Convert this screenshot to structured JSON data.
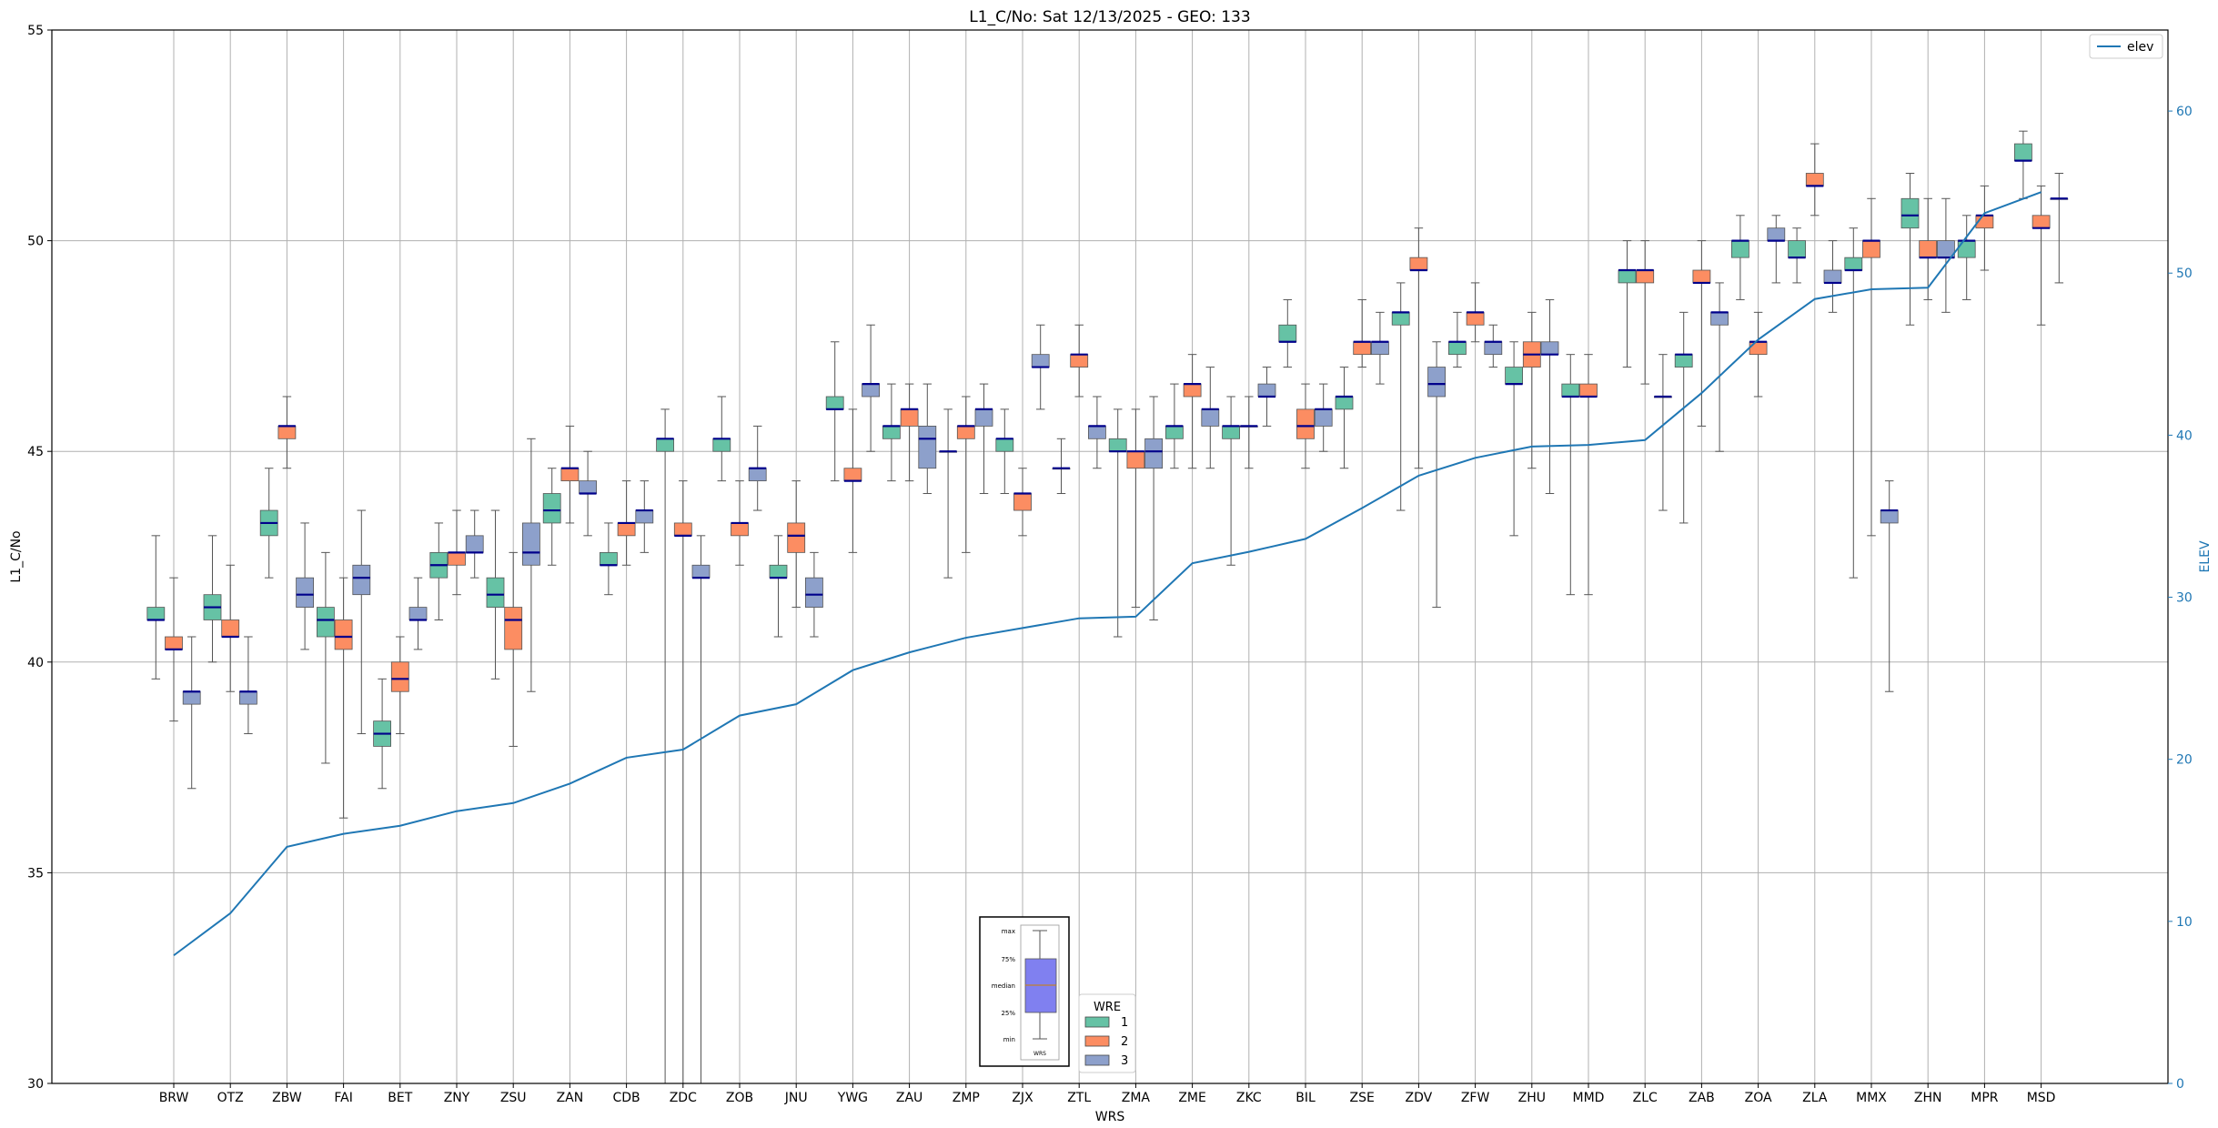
{
  "chart_data": {
    "type": "boxplot",
    "title": "L1_C/No: Sat 12/13/2025 - GEO: 133",
    "xlabel": "WRS",
    "ylabel": "L1_C/No",
    "y2label": "ELEV",
    "ylim": [
      30,
      55
    ],
    "y2lim": [
      0,
      65
    ],
    "yticks": [
      30,
      35,
      40,
      45,
      50,
      55
    ],
    "y2ticks": [
      0,
      10,
      20,
      30,
      40,
      50,
      60
    ],
    "grid": true,
    "colors": {
      "1": "#66c2a5",
      "2": "#fc8d62",
      "3": "#8da0cb",
      "median": "#00008b",
      "elev": "#1f77b4",
      "whisker": "#555555"
    },
    "legend_elev": {
      "label": "elev",
      "position": "top-right"
    },
    "legend_wre": {
      "title": "WRE",
      "entries": [
        "1",
        "2",
        "3"
      ],
      "position": "bottom-center"
    },
    "inset_key": {
      "labels": [
        "max",
        "75%",
        "median",
        "25%",
        "min"
      ],
      "xlabel": "WRS"
    },
    "categories": [
      "BRW",
      "OTZ",
      "ZBW",
      "FAI",
      "BET",
      "ZNY",
      "ZSU",
      "ZAN",
      "CDB",
      "ZDC",
      "ZOB",
      "JNU",
      "YWG",
      "ZAU",
      "ZMP",
      "ZJX",
      "ZTL",
      "ZMA",
      "ZME",
      "ZKC",
      "BIL",
      "ZSE",
      "ZDV",
      "ZFW",
      "ZHU",
      "MMD",
      "ZLC",
      "ZAB",
      "ZOA",
      "ZLA",
      "MMX",
      "ZHN",
      "MPR",
      "MSD"
    ],
    "elev": [
      7.9,
      10.5,
      14.6,
      15.4,
      15.9,
      16.8,
      17.3,
      18.5,
      20.1,
      20.6,
      22.7,
      23.4,
      25.5,
      26.6,
      27.5,
      28.1,
      28.7,
      28.8,
      32.1,
      32.8,
      33.6,
      35.5,
      37.5,
      38.6,
      39.3,
      39.4,
      39.7,
      42.6,
      45.9,
      48.4,
      49.0,
      49.1,
      53.7,
      55.0
    ],
    "boxes": [
      {
        "cat": "BRW",
        "wre": 1,
        "min": 39.6,
        "q1": 41.0,
        "med": 41.0,
        "q3": 41.3,
        "max": 43.0
      },
      {
        "cat": "BRW",
        "wre": 2,
        "min": 38.6,
        "q1": 40.3,
        "med": 40.3,
        "q3": 40.6,
        "max": 42.0
      },
      {
        "cat": "BRW",
        "wre": 3,
        "min": 37.0,
        "q1": 39.0,
        "med": 39.3,
        "q3": 39.3,
        "max": 40.6
      },
      {
        "cat": "OTZ",
        "wre": 1,
        "min": 40.0,
        "q1": 41.0,
        "med": 41.3,
        "q3": 41.6,
        "max": 43.0
      },
      {
        "cat": "OTZ",
        "wre": 2,
        "min": 39.3,
        "q1": 40.6,
        "med": 40.6,
        "q3": 41.0,
        "max": 42.3
      },
      {
        "cat": "OTZ",
        "wre": 3,
        "min": 38.3,
        "q1": 39.0,
        "med": 39.3,
        "q3": 39.3,
        "max": 40.6
      },
      {
        "cat": "ZBW",
        "wre": 1,
        "min": 42.0,
        "q1": 43.0,
        "med": 43.3,
        "q3": 43.6,
        "max": 44.6
      },
      {
        "cat": "ZBW",
        "wre": 2,
        "min": 44.6,
        "q1": 45.3,
        "med": 45.6,
        "q3": 45.6,
        "max": 46.3
      },
      {
        "cat": "ZBW",
        "wre": 3,
        "min": 40.3,
        "q1": 41.3,
        "med": 41.6,
        "q3": 42.0,
        "max": 43.3
      },
      {
        "cat": "FAI",
        "wre": 1,
        "min": 37.6,
        "q1": 40.6,
        "med": 41.0,
        "q3": 41.3,
        "max": 42.6
      },
      {
        "cat": "FAI",
        "wre": 2,
        "min": 36.3,
        "q1": 40.3,
        "med": 40.6,
        "q3": 41.0,
        "max": 42.0
      },
      {
        "cat": "FAI",
        "wre": 3,
        "min": 38.3,
        "q1": 41.6,
        "med": 42.0,
        "q3": 42.3,
        "max": 43.6
      },
      {
        "cat": "BET",
        "wre": 1,
        "min": 37.0,
        "q1": 38.0,
        "med": 38.3,
        "q3": 38.6,
        "max": 39.6
      },
      {
        "cat": "BET",
        "wre": 2,
        "min": 38.3,
        "q1": 39.3,
        "med": 39.6,
        "q3": 40.0,
        "max": 40.6
      },
      {
        "cat": "BET",
        "wre": 3,
        "min": 40.3,
        "q1": 41.0,
        "med": 41.0,
        "q3": 41.3,
        "max": 42.0
      },
      {
        "cat": "ZNY",
        "wre": 1,
        "min": 41.0,
        "q1": 42.0,
        "med": 42.3,
        "q3": 42.6,
        "max": 43.3
      },
      {
        "cat": "ZNY",
        "wre": 2,
        "min": 41.6,
        "q1": 42.3,
        "med": 42.6,
        "q3": 42.6,
        "max": 43.6
      },
      {
        "cat": "ZNY",
        "wre": 3,
        "min": 42.0,
        "q1": 42.6,
        "med": 42.6,
        "q3": 43.0,
        "max": 43.6
      },
      {
        "cat": "ZSU",
        "wre": 1,
        "min": 39.6,
        "q1": 41.3,
        "med": 41.6,
        "q3": 42.0,
        "max": 43.6
      },
      {
        "cat": "ZSU",
        "wre": 2,
        "min": 38.0,
        "q1": 40.3,
        "med": 41.0,
        "q3": 41.3,
        "max": 42.6
      },
      {
        "cat": "ZSU",
        "wre": 3,
        "min": 39.3,
        "q1": 42.3,
        "med": 42.6,
        "q3": 43.3,
        "max": 45.3
      },
      {
        "cat": "ZAN",
        "wre": 1,
        "min": 42.3,
        "q1": 43.3,
        "med": 43.6,
        "q3": 44.0,
        "max": 44.6
      },
      {
        "cat": "ZAN",
        "wre": 2,
        "min": 43.3,
        "q1": 44.3,
        "med": 44.6,
        "q3": 44.6,
        "max": 45.6
      },
      {
        "cat": "ZAN",
        "wre": 3,
        "min": 43.0,
        "q1": 44.0,
        "med": 44.0,
        "q3": 44.3,
        "max": 45.0
      },
      {
        "cat": "CDB",
        "wre": 1,
        "min": 41.6,
        "q1": 42.3,
        "med": 42.3,
        "q3": 42.6,
        "max": 43.3
      },
      {
        "cat": "CDB",
        "wre": 2,
        "min": 42.3,
        "q1": 43.0,
        "med": 43.3,
        "q3": 43.3,
        "max": 44.3
      },
      {
        "cat": "CDB",
        "wre": 3,
        "min": 42.6,
        "q1": 43.3,
        "med": 43.6,
        "q3": 43.6,
        "max": 44.3
      },
      {
        "cat": "ZDC",
        "wre": 1,
        "min": 30.0,
        "q1": 45.0,
        "med": 45.3,
        "q3": 45.3,
        "max": 46.0
      },
      {
        "cat": "ZDC",
        "wre": 2,
        "min": 30.0,
        "q1": 43.0,
        "med": 43.0,
        "q3": 43.3,
        "max": 44.3
      },
      {
        "cat": "ZDC",
        "wre": 3,
        "min": 30.0,
        "q1": 42.0,
        "med": 42.0,
        "q3": 42.3,
        "max": 43.0
      },
      {
        "cat": "ZOB",
        "wre": 1,
        "min": 44.3,
        "q1": 45.0,
        "med": 45.3,
        "q3": 45.3,
        "max": 46.3
      },
      {
        "cat": "ZOB",
        "wre": 2,
        "min": 42.3,
        "q1": 43.0,
        "med": 43.3,
        "q3": 43.3,
        "max": 44.3
      },
      {
        "cat": "ZOB",
        "wre": 3,
        "min": 43.6,
        "q1": 44.3,
        "med": 44.6,
        "q3": 44.6,
        "max": 45.6
      },
      {
        "cat": "JNU",
        "wre": 1,
        "min": 40.6,
        "q1": 42.0,
        "med": 42.0,
        "q3": 42.3,
        "max": 43.0
      },
      {
        "cat": "JNU",
        "wre": 2,
        "min": 41.3,
        "q1": 42.6,
        "med": 43.0,
        "q3": 43.3,
        "max": 44.3
      },
      {
        "cat": "JNU",
        "wre": 3,
        "min": 40.6,
        "q1": 41.3,
        "med": 41.6,
        "q3": 42.0,
        "max": 42.6
      },
      {
        "cat": "YWG",
        "wre": 1,
        "min": 44.3,
        "q1": 46.0,
        "med": 46.0,
        "q3": 46.3,
        "max": 47.6
      },
      {
        "cat": "YWG",
        "wre": 2,
        "min": 42.6,
        "q1": 44.3,
        "med": 44.3,
        "q3": 44.6,
        "max": 46.0
      },
      {
        "cat": "YWG",
        "wre": 3,
        "min": 45.0,
        "q1": 46.3,
        "med": 46.6,
        "q3": 46.6,
        "max": 48.0
      },
      {
        "cat": "ZAU",
        "wre": 1,
        "min": 44.3,
        "q1": 45.3,
        "med": 45.6,
        "q3": 45.6,
        "max": 46.6
      },
      {
        "cat": "ZAU",
        "wre": 2,
        "min": 44.3,
        "q1": 45.6,
        "med": 46.0,
        "q3": 46.0,
        "max": 46.6
      },
      {
        "cat": "ZAU",
        "wre": 3,
        "min": 44.0,
        "q1": 44.6,
        "med": 45.3,
        "q3": 45.6,
        "max": 46.6
      },
      {
        "cat": "ZMP",
        "wre": 1,
        "min": 42.0,
        "q1": 45.0,
        "med": 45.0,
        "q3": 45.0,
        "max": 46.0
      },
      {
        "cat": "ZMP",
        "wre": 2,
        "min": 42.6,
        "q1": 45.3,
        "med": 45.6,
        "q3": 45.6,
        "max": 46.3
      },
      {
        "cat": "ZMP",
        "wre": 3,
        "min": 44.0,
        "q1": 45.6,
        "med": 46.0,
        "q3": 46.0,
        "max": 46.6
      },
      {
        "cat": "ZJX",
        "wre": 1,
        "min": 44.0,
        "q1": 45.0,
        "med": 45.3,
        "q3": 45.3,
        "max": 46.0
      },
      {
        "cat": "ZJX",
        "wre": 2,
        "min": 43.0,
        "q1": 43.6,
        "med": 44.0,
        "q3": 44.0,
        "max": 44.6
      },
      {
        "cat": "ZJX",
        "wre": 3,
        "min": 46.0,
        "q1": 47.0,
        "med": 47.0,
        "q3": 47.3,
        "max": 48.0
      },
      {
        "cat": "ZTL",
        "wre": 1,
        "min": 44.0,
        "q1": 44.6,
        "med": 44.6,
        "q3": 44.6,
        "max": 45.3
      },
      {
        "cat": "ZTL",
        "wre": 2,
        "min": 46.3,
        "q1": 47.0,
        "med": 47.3,
        "q3": 47.3,
        "max": 48.0
      },
      {
        "cat": "ZTL",
        "wre": 3,
        "min": 44.6,
        "q1": 45.3,
        "med": 45.6,
        "q3": 45.6,
        "max": 46.3
      },
      {
        "cat": "ZMA",
        "wre": 1,
        "min": 40.6,
        "q1": 45.0,
        "med": 45.0,
        "q3": 45.3,
        "max": 46.0
      },
      {
        "cat": "ZMA",
        "wre": 2,
        "min": 41.3,
        "q1": 44.6,
        "med": 45.0,
        "q3": 45.0,
        "max": 46.0
      },
      {
        "cat": "ZMA",
        "wre": 3,
        "min": 41.0,
        "q1": 44.6,
        "med": 45.0,
        "q3": 45.3,
        "max": 46.3
      },
      {
        "cat": "ZME",
        "wre": 1,
        "min": 44.6,
        "q1": 45.3,
        "med": 45.6,
        "q3": 45.6,
        "max": 46.6
      },
      {
        "cat": "ZME",
        "wre": 2,
        "min": 44.6,
        "q1": 46.3,
        "med": 46.6,
        "q3": 46.6,
        "max": 47.3
      },
      {
        "cat": "ZME",
        "wre": 3,
        "min": 44.6,
        "q1": 45.6,
        "med": 46.0,
        "q3": 46.0,
        "max": 47.0
      },
      {
        "cat": "ZKC",
        "wre": 1,
        "min": 42.3,
        "q1": 45.3,
        "med": 45.6,
        "q3": 45.6,
        "max": 46.3
      },
      {
        "cat": "ZKC",
        "wre": 2,
        "min": 44.6,
        "q1": 45.6,
        "med": 45.6,
        "q3": 45.6,
        "max": 46.3
      },
      {
        "cat": "ZKC",
        "wre": 3,
        "min": 45.6,
        "q1": 46.3,
        "med": 46.3,
        "q3": 46.6,
        "max": 47.0
      },
      {
        "cat": "BIL",
        "wre": 1,
        "min": 47.0,
        "q1": 47.6,
        "med": 47.6,
        "q3": 48.0,
        "max": 48.6
      },
      {
        "cat": "BIL",
        "wre": 2,
        "min": 44.6,
        "q1": 45.3,
        "med": 45.6,
        "q3": 46.0,
        "max": 46.6
      },
      {
        "cat": "BIL",
        "wre": 3,
        "min": 45.0,
        "q1": 45.6,
        "med": 46.0,
        "q3": 46.0,
        "max": 46.6
      },
      {
        "cat": "ZSE",
        "wre": 1,
        "min": 44.6,
        "q1": 46.0,
        "med": 46.3,
        "q3": 46.3,
        "max": 47.0
      },
      {
        "cat": "ZSE",
        "wre": 2,
        "min": 47.0,
        "q1": 47.3,
        "med": 47.6,
        "q3": 47.6,
        "max": 48.6
      },
      {
        "cat": "ZSE",
        "wre": 3,
        "min": 46.6,
        "q1": 47.3,
        "med": 47.6,
        "q3": 47.6,
        "max": 48.3
      },
      {
        "cat": "ZDV",
        "wre": 1,
        "min": 43.6,
        "q1": 48.0,
        "med": 48.3,
        "q3": 48.3,
        "max": 49.0
      },
      {
        "cat": "ZDV",
        "wre": 2,
        "min": 44.6,
        "q1": 49.3,
        "med": 49.3,
        "q3": 49.6,
        "max": 50.3
      },
      {
        "cat": "ZDV",
        "wre": 3,
        "min": 41.3,
        "q1": 46.3,
        "med": 46.6,
        "q3": 47.0,
        "max": 47.6
      },
      {
        "cat": "ZFW",
        "wre": 1,
        "min": 47.0,
        "q1": 47.3,
        "med": 47.6,
        "q3": 47.6,
        "max": 48.3
      },
      {
        "cat": "ZFW",
        "wre": 2,
        "min": 47.6,
        "q1": 48.0,
        "med": 48.3,
        "q3": 48.3,
        "max": 49.0
      },
      {
        "cat": "ZFW",
        "wre": 3,
        "min": 47.0,
        "q1": 47.3,
        "med": 47.6,
        "q3": 47.6,
        "max": 48.0
      },
      {
        "cat": "ZHU",
        "wre": 1,
        "min": 43.0,
        "q1": 46.6,
        "med": 46.6,
        "q3": 47.0,
        "max": 47.6
      },
      {
        "cat": "ZHU",
        "wre": 2,
        "min": 44.6,
        "q1": 47.0,
        "med": 47.3,
        "q3": 47.6,
        "max": 48.3
      },
      {
        "cat": "ZHU",
        "wre": 3,
        "min": 44.0,
        "q1": 47.3,
        "med": 47.3,
        "q3": 47.6,
        "max": 48.6
      },
      {
        "cat": "MMD",
        "wre": 1,
        "min": 41.6,
        "q1": 46.3,
        "med": 46.3,
        "q3": 46.6,
        "max": 47.3
      },
      {
        "cat": "MMD",
        "wre": 2,
        "min": 41.6,
        "q1": 46.3,
        "med": 46.3,
        "q3": 46.6,
        "max": 47.3
      },
      {
        "cat": "ZLC",
        "wre": 1,
        "min": 47.0,
        "q1": 49.0,
        "med": 49.3,
        "q3": 49.3,
        "max": 50.0
      },
      {
        "cat": "ZLC",
        "wre": 2,
        "min": 46.6,
        "q1": 49.0,
        "med": 49.3,
        "q3": 49.3,
        "max": 50.0
      },
      {
        "cat": "ZLC",
        "wre": 3,
        "min": 43.6,
        "q1": 46.3,
        "med": 46.3,
        "q3": 46.3,
        "max": 47.3
      },
      {
        "cat": "ZAB",
        "wre": 1,
        "min": 43.3,
        "q1": 47.0,
        "med": 47.3,
        "q3": 47.3,
        "max": 48.3
      },
      {
        "cat": "ZAB",
        "wre": 2,
        "min": 45.6,
        "q1": 49.0,
        "med": 49.0,
        "q3": 49.3,
        "max": 50.0
      },
      {
        "cat": "ZAB",
        "wre": 3,
        "min": 45.0,
        "q1": 48.0,
        "med": 48.3,
        "q3": 48.3,
        "max": 49.0
      },
      {
        "cat": "ZOA",
        "wre": 1,
        "min": 48.6,
        "q1": 49.6,
        "med": 50.0,
        "q3": 50.0,
        "max": 50.6
      },
      {
        "cat": "ZOA",
        "wre": 2,
        "min": 46.3,
        "q1": 47.3,
        "med": 47.6,
        "q3": 47.6,
        "max": 48.3
      },
      {
        "cat": "ZOA",
        "wre": 3,
        "min": 49.0,
        "q1": 50.0,
        "med": 50.0,
        "q3": 50.3,
        "max": 50.6
      },
      {
        "cat": "ZLA",
        "wre": 1,
        "min": 49.0,
        "q1": 49.6,
        "med": 49.6,
        "q3": 50.0,
        "max": 50.3
      },
      {
        "cat": "ZLA",
        "wre": 2,
        "min": 50.6,
        "q1": 51.3,
        "med": 51.3,
        "q3": 51.6,
        "max": 52.3
      },
      {
        "cat": "ZLA",
        "wre": 3,
        "min": 48.3,
        "q1": 49.0,
        "med": 49.0,
        "q3": 49.3,
        "max": 50.0
      },
      {
        "cat": "MMX",
        "wre": 1,
        "min": 42.0,
        "q1": 49.3,
        "med": 49.3,
        "q3": 49.6,
        "max": 50.3
      },
      {
        "cat": "MMX",
        "wre": 2,
        "min": 43.0,
        "q1": 49.6,
        "med": 50.0,
        "q3": 50.0,
        "max": 51.0
      },
      {
        "cat": "MMX",
        "wre": 3,
        "min": 39.3,
        "q1": 43.3,
        "med": 43.6,
        "q3": 43.6,
        "max": 44.3
      },
      {
        "cat": "ZHN",
        "wre": 1,
        "min": 48.0,
        "q1": 50.3,
        "med": 50.6,
        "q3": 51.0,
        "max": 51.6
      },
      {
        "cat": "ZHN",
        "wre": 2,
        "min": 48.6,
        "q1": 49.6,
        "med": 49.6,
        "q3": 50.0,
        "max": 51.0
      },
      {
        "cat": "ZHN",
        "wre": 3,
        "min": 48.3,
        "q1": 49.6,
        "med": 49.6,
        "q3": 50.0,
        "max": 51.0
      },
      {
        "cat": "MPR",
        "wre": 1,
        "min": 48.6,
        "q1": 49.6,
        "med": 50.0,
        "q3": 50.0,
        "max": 50.6
      },
      {
        "cat": "MPR",
        "wre": 2,
        "min": 49.3,
        "q1": 50.3,
        "med": 50.6,
        "q3": 50.6,
        "max": 51.3
      },
      {
        "cat": "MSD",
        "wre": 1,
        "min": 51.0,
        "q1": 51.9,
        "med": 51.9,
        "q3": 52.3,
        "max": 52.6
      },
      {
        "cat": "MSD",
        "wre": 2,
        "min": 48.0,
        "q1": 50.3,
        "med": 50.3,
        "q3": 50.6,
        "max": 51.3
      },
      {
        "cat": "MSD",
        "wre": 3,
        "min": 49.0,
        "q1": 51.0,
        "med": 51.0,
        "q3": 51.0,
        "max": 51.6
      }
    ]
  }
}
